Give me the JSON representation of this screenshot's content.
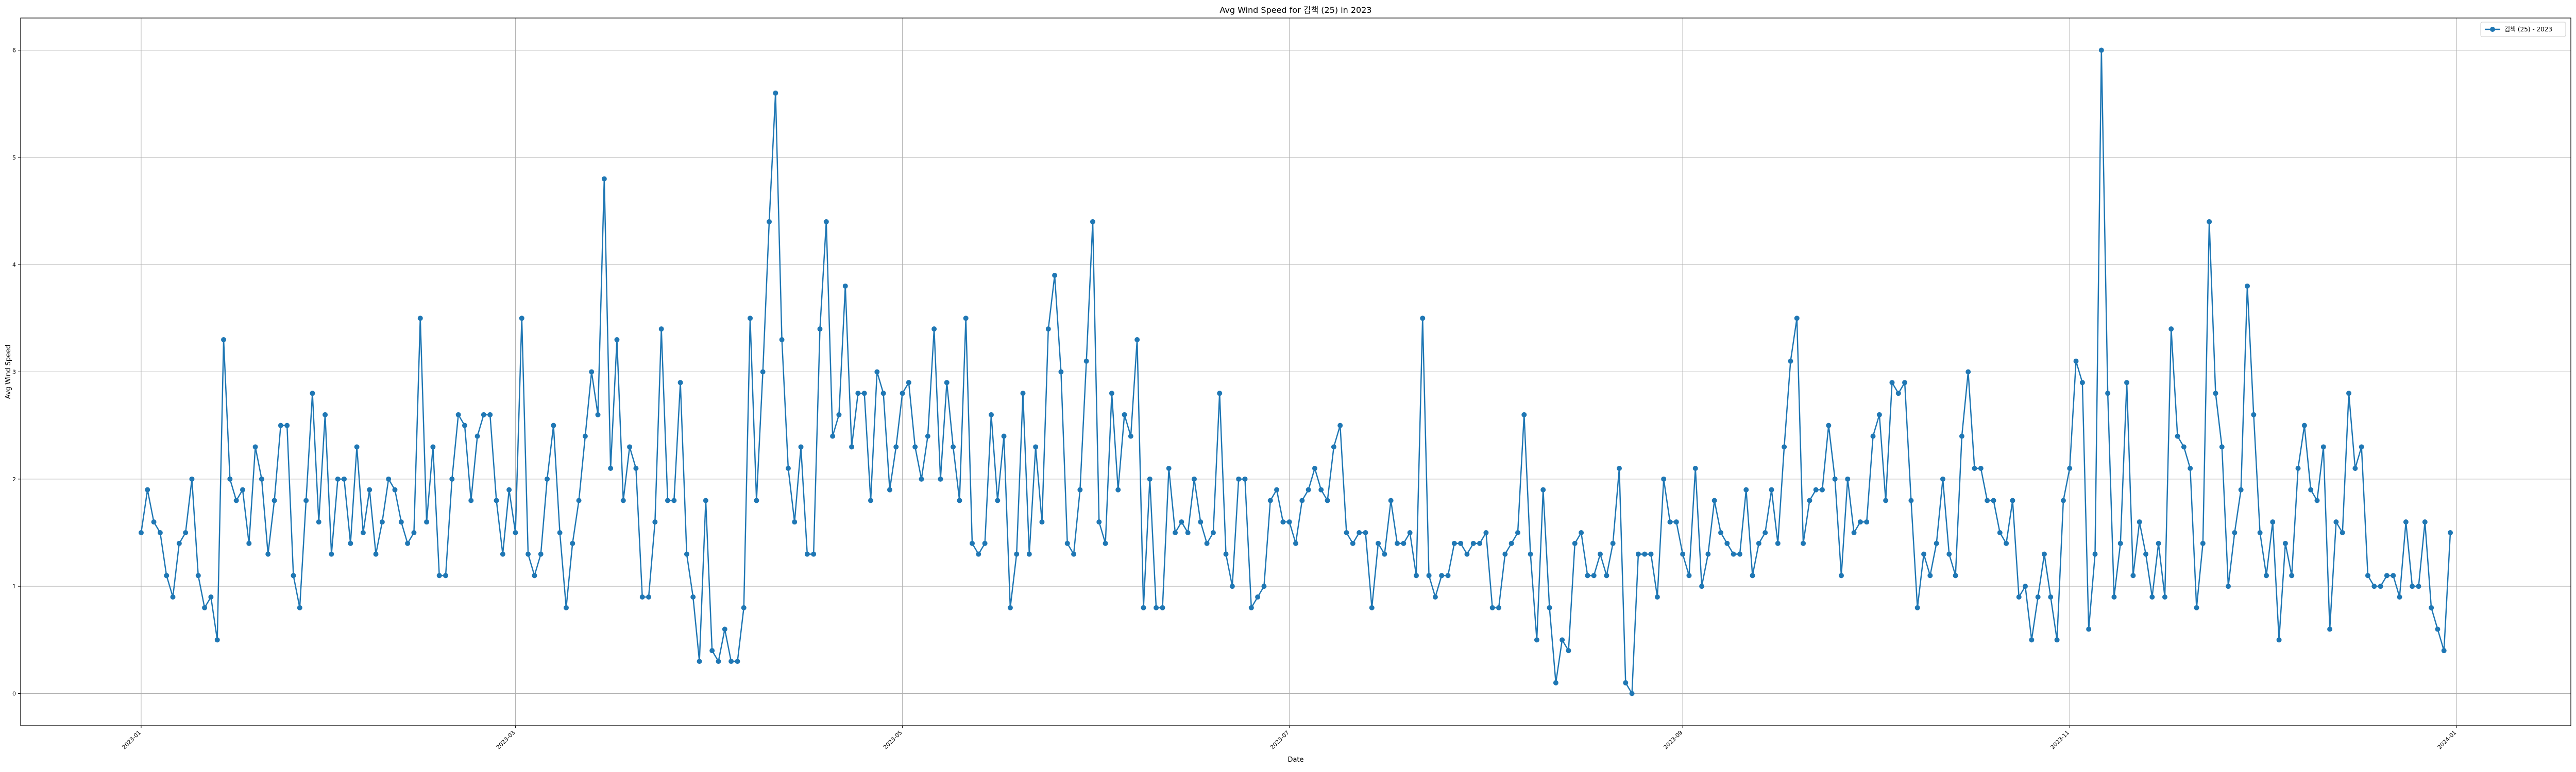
{
  "chart_data": {
    "type": "line",
    "title": "Avg Wind Speed for 김책 (25) in 2023",
    "xlabel": "Date",
    "ylabel": "Avg Wind Speed",
    "xlim": [
      "2022-12-13",
      "2024-01-19"
    ],
    "ylim": [
      -0.3,
      6.3
    ],
    "yticks": [
      0,
      1,
      2,
      3,
      4,
      5,
      6
    ],
    "xticks": [
      {
        "date": "2023-01-01",
        "label": "2023-01"
      },
      {
        "date": "2023-03-01",
        "label": "2023-03"
      },
      {
        "date": "2023-05-01",
        "label": "2023-05"
      },
      {
        "date": "2023-07-01",
        "label": "2023-07"
      },
      {
        "date": "2023-09-01",
        "label": "2023-09"
      },
      {
        "date": "2023-11-01",
        "label": "2023-11"
      },
      {
        "date": "2024-01-01",
        "label": "2024-01"
      }
    ],
    "grid": true,
    "legend_position": "top-right",
    "line_color": "#1f77b4",
    "series": [
      {
        "name": "김책 (25) - 2023",
        "start_date": "2023-01-01",
        "values": [
          1.5,
          1.9,
          1.6,
          1.5,
          1.1,
          0.9,
          1.4,
          1.5,
          2.0,
          1.1,
          0.8,
          0.9,
          0.5,
          3.3,
          2.0,
          1.8,
          1.9,
          1.4,
          2.3,
          2.0,
          1.3,
          1.8,
          2.5,
          2.5,
          1.1,
          0.8,
          1.8,
          2.8,
          1.6,
          2.6,
          1.3,
          2.0,
          2.0,
          1.4,
          2.3,
          1.5,
          1.9,
          1.3,
          1.6,
          2.0,
          1.9,
          1.6,
          1.4,
          1.5,
          3.5,
          1.6,
          2.3,
          1.1,
          1.1,
          2.0,
          2.6,
          2.5,
          1.8,
          2.4,
          2.6,
          2.6,
          1.8,
          1.3,
          1.9,
          1.5,
          3.5,
          1.3,
          1.1,
          1.3,
          2.0,
          2.5,
          1.5,
          0.8,
          1.4,
          1.8,
          2.4,
          3.0,
          2.6,
          4.8,
          2.1,
          3.3,
          1.8,
          2.3,
          2.1,
          0.9,
          0.9,
          1.6,
          3.4,
          1.8,
          1.8,
          2.9,
          1.3,
          0.9,
          0.3,
          1.8,
          0.4,
          0.3,
          0.6,
          0.3,
          0.3,
          0.8,
          3.5,
          1.8,
          3.0,
          4.4,
          5.6,
          3.3,
          2.1,
          1.6,
          2.3,
          1.3,
          1.3,
          3.4,
          4.4,
          2.4,
          2.6,
          3.8,
          2.3,
          2.8,
          2.8,
          1.8,
          3.0,
          2.8,
          1.9,
          2.3,
          2.8,
          2.9,
          2.3,
          2.0,
          2.4,
          3.4,
          2.0,
          2.9,
          2.3,
          1.8,
          3.5,
          1.4,
          1.3,
          1.4,
          2.6,
          1.8,
          2.4,
          0.8,
          1.3,
          2.8,
          1.3,
          2.3,
          1.6,
          3.4,
          3.9,
          3.0,
          1.4,
          1.3,
          1.9,
          3.1,
          4.4,
          1.6,
          1.4,
          2.8,
          1.9,
          2.6,
          2.4,
          3.3,
          0.8,
          2.0,
          0.8,
          0.8,
          2.1,
          1.5,
          1.6,
          1.5,
          2.0,
          1.6,
          1.4,
          1.5,
          2.8,
          1.3,
          1.0,
          2.0,
          2.0,
          0.8,
          0.9,
          1.0,
          1.8,
          1.9,
          1.6,
          1.6,
          1.4,
          1.8,
          1.9,
          2.1,
          1.9,
          1.8,
          2.3,
          2.5,
          1.5,
          1.4,
          1.5,
          1.5,
          0.8,
          1.4,
          1.3,
          1.8,
          1.4,
          1.4,
          1.5,
          1.1,
          3.5,
          1.1,
          0.9,
          1.1,
          1.1,
          1.4,
          1.4,
          1.3,
          1.4,
          1.4,
          1.5,
          0.8,
          0.8,
          1.3,
          1.4,
          1.5,
          2.6,
          1.3,
          0.5,
          1.9,
          0.8,
          0.1,
          0.5,
          0.4,
          1.4,
          1.5,
          1.1,
          1.1,
          1.3,
          1.1,
          1.4,
          2.1,
          0.1,
          0.0,
          1.3,
          1.3,
          1.3,
          0.9,
          2.0,
          1.6,
          1.6,
          1.3,
          1.1,
          2.1,
          1.0,
          1.3,
          1.8,
          1.5,
          1.4,
          1.3,
          1.3,
          1.9,
          1.1,
          1.4,
          1.5,
          1.9,
          1.4,
          2.3,
          3.1,
          3.5,
          1.4,
          1.8,
          1.9,
          1.9,
          2.5,
          2.0,
          1.1,
          2.0,
          1.5,
          1.6,
          1.6,
          2.4,
          2.6,
          1.8,
          2.9,
          2.8,
          2.9,
          1.8,
          0.8,
          1.3,
          1.1,
          1.4,
          2.0,
          1.3,
          1.1,
          2.4,
          3.0,
          2.1,
          2.1,
          1.8,
          1.8,
          1.5,
          1.4,
          1.8,
          0.9,
          1.0,
          0.5,
          0.9,
          1.3,
          0.9,
          0.5,
          1.8,
          2.1,
          3.1,
          2.9,
          0.6,
          1.3,
          6.0,
          2.8,
          0.9,
          1.4,
          2.9,
          1.1,
          1.6,
          1.3,
          0.9,
          1.4,
          0.9,
          3.4,
          2.4,
          2.3,
          2.1,
          0.8,
          1.4,
          4.4,
          2.8,
          2.3,
          1.0,
          1.5,
          1.9,
          3.8,
          2.6,
          1.5,
          1.1,
          1.6,
          0.5,
          1.4,
          1.1,
          2.1,
          2.5,
          1.9,
          1.8,
          2.3,
          0.6,
          1.6,
          1.5,
          2.8,
          2.1,
          2.3,
          1.1,
          1.0,
          1.0,
          1.1,
          1.1,
          0.9,
          1.6,
          1.0,
          1.0,
          1.6,
          0.8,
          0.6,
          0.4,
          1.5
        ]
      }
    ]
  }
}
